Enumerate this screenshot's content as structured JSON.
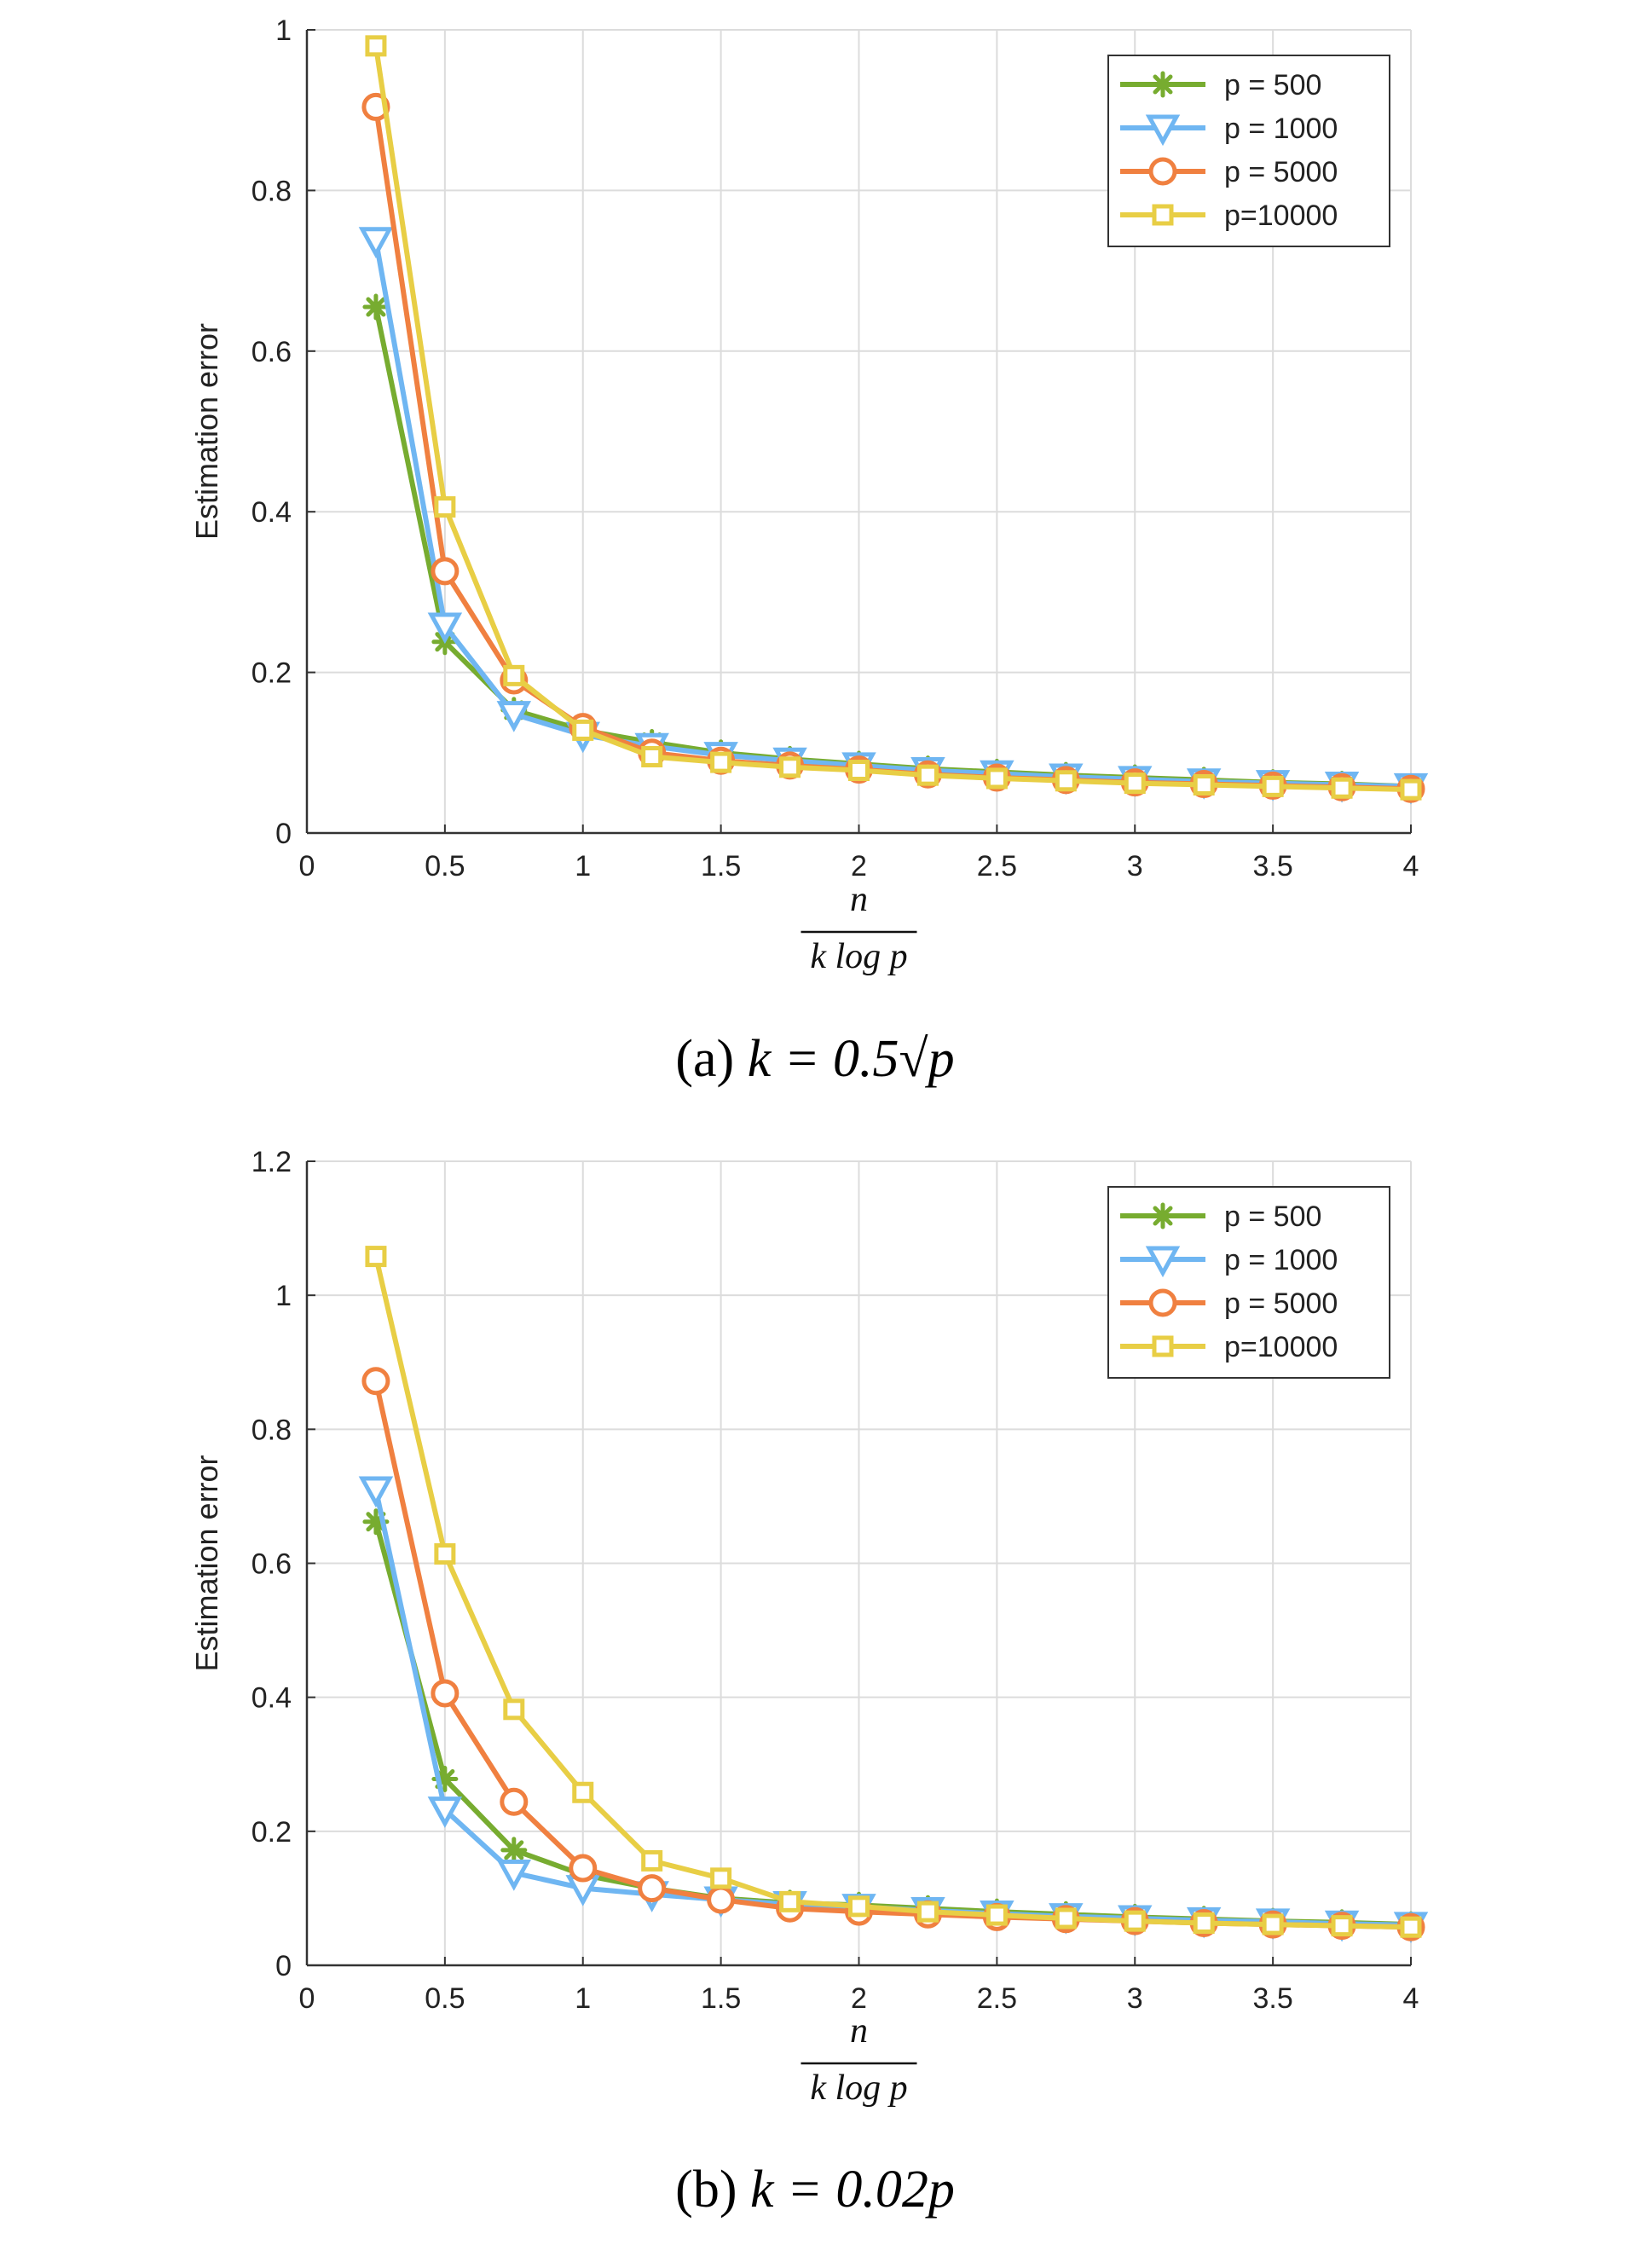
{
  "chart_data": [
    {
      "type": "line",
      "caption_label": "(a)",
      "caption_math": "k = 0.5√p",
      "ylabel": "Estimation error",
      "xlabel_numerator": "n",
      "xlabel_denominator": "k log p",
      "xlim": [
        0,
        4
      ],
      "ylim": [
        0,
        1
      ],
      "xticks": [
        "0",
        "0.5",
        "1",
        "1.5",
        "2",
        "2.5",
        "3",
        "3.5",
        "4"
      ],
      "yticks": [
        "0",
        "0.2",
        "0.4",
        "0.6",
        "0.8",
        "1"
      ],
      "grid": true,
      "legend_position": "top-right",
      "x": [
        0.25,
        0.5,
        0.75,
        1,
        1.25,
        1.5,
        1.75,
        2,
        2.25,
        2.5,
        2.75,
        3,
        3.25,
        3.5,
        3.75,
        4
      ],
      "series": [
        {
          "name": "p = 500",
          "color": "#77AC30",
          "marker": "asterisk",
          "values": [
            0.655,
            0.238,
            0.153,
            0.128,
            0.113,
            0.1,
            0.092,
            0.086,
            0.08,
            0.076,
            0.072,
            0.069,
            0.066,
            0.063,
            0.061,
            0.058
          ]
        },
        {
          "name": "p = 1000",
          "color": "#6FB6F2",
          "marker": "triangle-down",
          "values": [
            0.738,
            0.258,
            0.148,
            0.122,
            0.108,
            0.097,
            0.09,
            0.084,
            0.078,
            0.074,
            0.07,
            0.067,
            0.064,
            0.062,
            0.06,
            0.058
          ]
        },
        {
          "name": "p = 5000",
          "color": "#F08040",
          "marker": "circle",
          "values": [
            0.904,
            0.326,
            0.19,
            0.132,
            0.1,
            0.09,
            0.084,
            0.079,
            0.073,
            0.069,
            0.066,
            0.063,
            0.061,
            0.059,
            0.057,
            0.055
          ]
        },
        {
          "name": "p=10000",
          "color": "#E8CE45",
          "marker": "square",
          "values": [
            0.98,
            0.406,
            0.196,
            0.128,
            0.095,
            0.088,
            0.082,
            0.078,
            0.072,
            0.068,
            0.065,
            0.062,
            0.06,
            0.058,
            0.056,
            0.054
          ]
        }
      ]
    },
    {
      "type": "line",
      "caption_label": "(b)",
      "caption_math": "k = 0.02p",
      "ylabel": "Estimation error",
      "xlabel_numerator": "n",
      "xlabel_denominator": "k log p",
      "xlim": [
        0,
        4
      ],
      "ylim": [
        0,
        1.2
      ],
      "xticks": [
        "0",
        "0.5",
        "1",
        "1.5",
        "2",
        "2.5",
        "3",
        "3.5",
        "4"
      ],
      "yticks": [
        "0",
        "0.2",
        "0.4",
        "0.6",
        "0.8",
        "1",
        "1.2"
      ],
      "grid": true,
      "legend_position": "top-right",
      "x": [
        0.25,
        0.5,
        0.75,
        1,
        1.25,
        1.5,
        1.75,
        2,
        2.25,
        2.5,
        2.75,
        3,
        3.25,
        3.5,
        3.75,
        4
      ],
      "series": [
        {
          "name": "p = 500",
          "color": "#77AC30",
          "marker": "asterisk",
          "values": [
            0.662,
            0.278,
            0.172,
            0.135,
            0.115,
            0.1,
            0.093,
            0.09,
            0.085,
            0.08,
            0.076,
            0.072,
            0.069,
            0.066,
            0.064,
            0.061
          ]
        },
        {
          "name": "p = 1000",
          "color": "#6FB6F2",
          "marker": "triangle-down",
          "values": [
            0.71,
            0.232,
            0.138,
            0.115,
            0.106,
            0.098,
            0.091,
            0.087,
            0.082,
            0.077,
            0.073,
            0.07,
            0.067,
            0.065,
            0.062,
            0.06
          ]
        },
        {
          "name": "p = 5000",
          "color": "#F08040",
          "marker": "circle",
          "values": [
            0.872,
            0.406,
            0.244,
            0.145,
            0.115,
            0.098,
            0.085,
            0.08,
            0.076,
            0.072,
            0.069,
            0.066,
            0.063,
            0.061,
            0.059,
            0.057
          ]
        },
        {
          "name": "p=10000",
          "color": "#E8CE45",
          "marker": "square",
          "values": [
            1.058,
            0.614,
            0.382,
            0.258,
            0.156,
            0.13,
            0.095,
            0.088,
            0.08,
            0.075,
            0.07,
            0.066,
            0.063,
            0.061,
            0.059,
            0.057
          ]
        }
      ]
    }
  ]
}
